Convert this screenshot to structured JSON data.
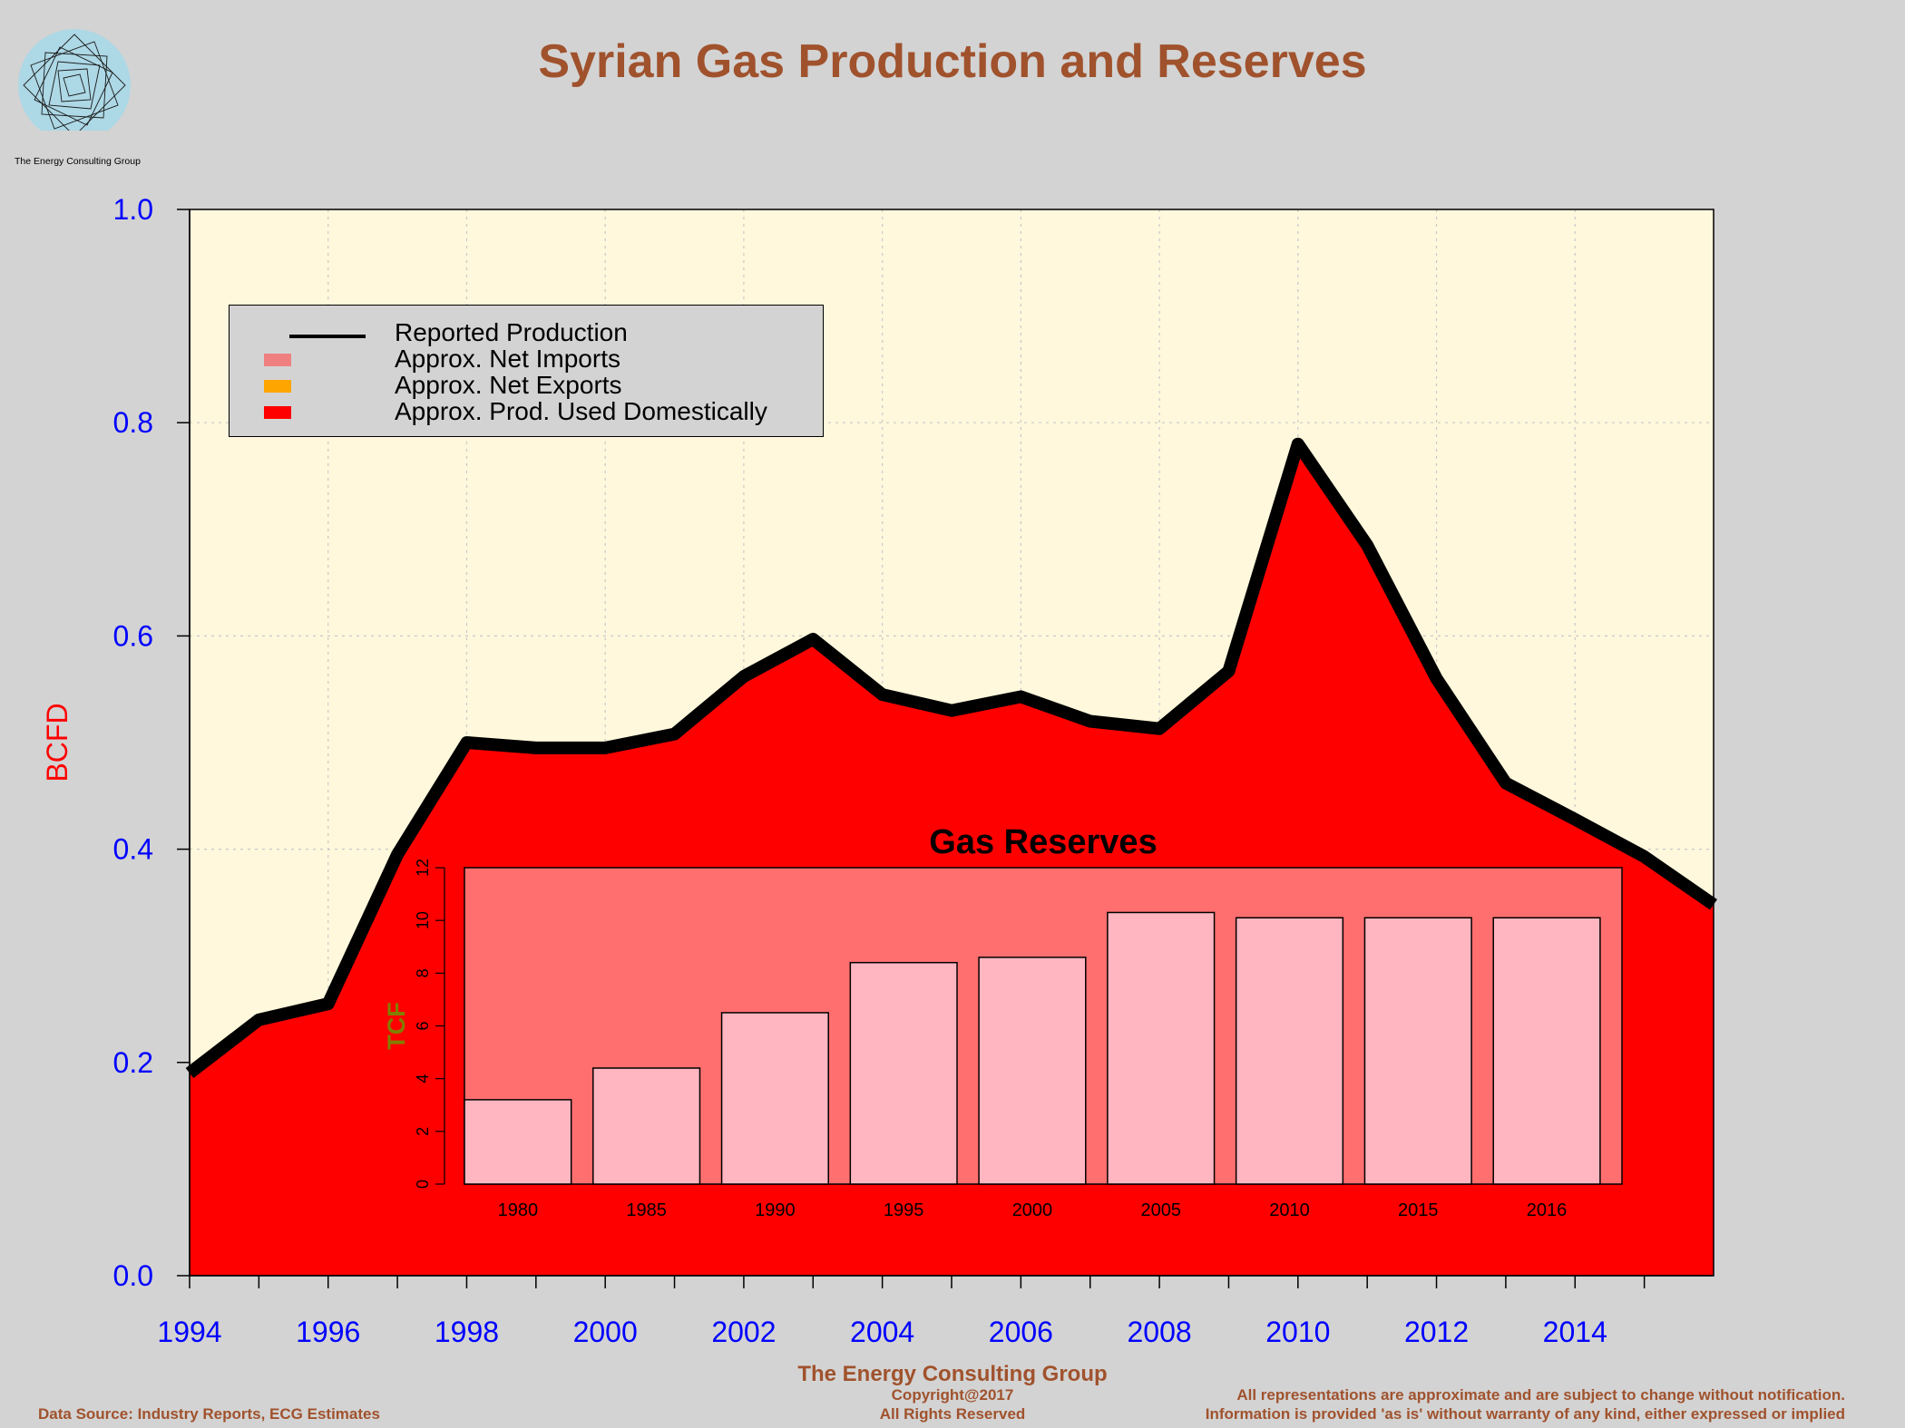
{
  "title": "Syrian Gas Production and Reserves",
  "logo": {
    "caption": "The Energy Consulting Group",
    "icon": "spiral-logo-icon"
  },
  "colors": {
    "background": "#d3d3d3",
    "plot_background": "#fff8dc",
    "title": "#a0522d",
    "axis_tick_labels": "#0000ff",
    "ylabel": "#ff0000",
    "domestic": "#ff0000",
    "imports": "#f08080",
    "exports": "#ffa500",
    "production_line": "#000000",
    "inset_background": "#ff6f6f",
    "inset_bars": "#ffb6c1",
    "inset_ylabel": "#808000"
  },
  "chart_data": [
    {
      "type": "area",
      "ylabel": "BCFD",
      "xlim": [
        1994,
        2016
      ],
      "ylim": [
        0,
        1.0
      ],
      "x_ticks": [
        1994,
        1996,
        1998,
        2000,
        2002,
        2004,
        2006,
        2008,
        2010,
        2012,
        2014
      ],
      "y_ticks": [
        "0.0",
        "0.2",
        "0.4",
        "0.6",
        "0.8",
        "1.0"
      ],
      "grid": true,
      "legend_position": "top-left",
      "legend": [
        {
          "label": "Reported Production",
          "style": "line"
        },
        {
          "label": "Approx. Net Imports",
          "style": "box"
        },
        {
          "label": "Approx. Net Exports",
          "style": "box"
        },
        {
          "label": "Approx. Prod. Used Domestically",
          "style": "box"
        }
      ],
      "x": [
        1994,
        1995,
        1996,
        1997,
        1998,
        1999,
        2000,
        2001,
        2002,
        2003,
        2004,
        2005,
        2006,
        2007,
        2008,
        2009,
        2010,
        2011,
        2012,
        2013,
        2014,
        2015,
        2016
      ],
      "series": [
        {
          "name": "Reported Production",
          "values": [
            0.19,
            0.24,
            0.255,
            0.395,
            0.5,
            0.495,
            0.495,
            0.508,
            0.562,
            0.597,
            0.545,
            0.53,
            0.543,
            0.52,
            0.513,
            0.567,
            0.78,
            0.685,
            0.56,
            0.462,
            0.428,
            0.393,
            0.348
          ]
        },
        {
          "name": "Approx. Net Imports",
          "values": [
            0,
            0,
            0,
            0,
            0,
            0,
            0,
            0,
            0,
            0,
            0,
            0,
            0,
            0,
            0,
            0,
            0,
            0,
            0,
            0,
            0,
            0,
            0
          ]
        },
        {
          "name": "Approx. Net Exports",
          "values": [
            0,
            0,
            0,
            0,
            0,
            0,
            0,
            0,
            0,
            0,
            0,
            0,
            0,
            0,
            0,
            0,
            0,
            0,
            0,
            0,
            0,
            0,
            0
          ]
        },
        {
          "name": "Approx. Prod. Used Domestically",
          "values": [
            0.19,
            0.24,
            0.255,
            0.395,
            0.5,
            0.495,
            0.495,
            0.508,
            0.562,
            0.597,
            0.545,
            0.53,
            0.543,
            0.52,
            0.513,
            0.567,
            0.78,
            0.685,
            0.56,
            0.462,
            0.428,
            0.393,
            0.348
          ]
        }
      ]
    },
    {
      "type": "bar",
      "title": "Gas Reserves",
      "ylabel": "TCF",
      "categories": [
        "1980",
        "1985",
        "1990",
        "1995",
        "2000",
        "2005",
        "2010",
        "2015",
        "2016"
      ],
      "values": [
        3.2,
        4.4,
        6.5,
        8.4,
        8.6,
        10.3,
        10.1,
        10.1,
        10.1
      ],
      "ylim": [
        0,
        12
      ],
      "y_ticks": [
        "0",
        "2",
        "4",
        "6",
        "8",
        "10",
        "12"
      ]
    }
  ],
  "footer": {
    "center_title": "The Energy Consulting Group",
    "copyright": "Copyright@2017",
    "rights": "All Rights Reserved",
    "source": "Data Source: Industry Reports, ECG Estimates",
    "disclaimer_1": "All representations are approximate and are subject to change without notification.",
    "disclaimer_2": "Information is provided 'as is' without warranty of any kind, either expressed or implied"
  }
}
